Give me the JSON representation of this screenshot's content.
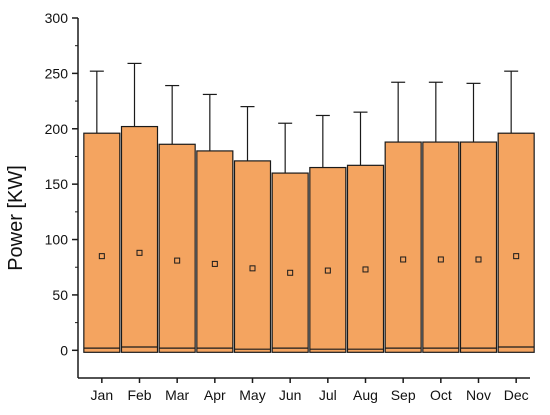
{
  "chart_data": {
    "type": "box",
    "categories": [
      "Jan",
      "Feb",
      "Mar",
      "Apr",
      "May",
      "Jun",
      "Jul",
      "Aug",
      "Sep",
      "Oct",
      "Nov",
      "Dec"
    ],
    "ylabel": "Power [KW]",
    "xlabel": "",
    "title": "",
    "ylim": [
      -25,
      300
    ],
    "yticks": [
      0,
      50,
      100,
      150,
      200,
      250,
      300
    ],
    "series": [
      {
        "box_low": [
          2,
          3,
          2,
          2,
          1,
          2,
          1,
          1,
          2,
          2,
          2,
          3
        ],
        "box_high": [
          196,
          202,
          186,
          180,
          171,
          160,
          165,
          167,
          188,
          188,
          188,
          196
        ],
        "whisker_high": [
          252,
          259,
          239,
          231,
          220,
          205,
          212,
          215,
          242,
          242,
          241,
          252
        ],
        "mean": [
          85,
          88,
          81,
          78,
          74,
          70,
          72,
          73,
          82,
          82,
          82,
          85
        ]
      }
    ],
    "grid": false,
    "colors": {
      "box_fill": "#f4a460",
      "box_stroke": "#1a1a1a",
      "mean_marker": "#1a1a1a"
    }
  }
}
